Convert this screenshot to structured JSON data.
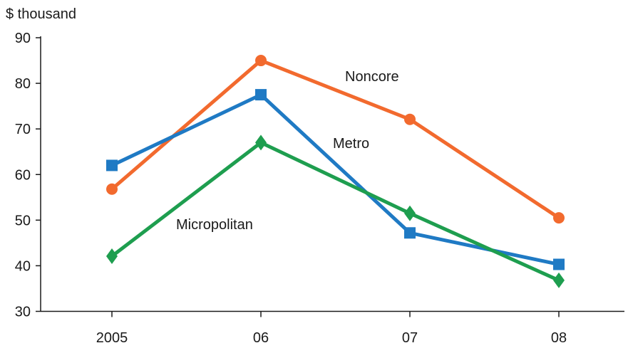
{
  "chart_data": {
    "type": "line",
    "unit_label": "$ thousand",
    "categories": [
      "2005",
      "06",
      "07",
      "08"
    ],
    "ylim": [
      30,
      90
    ],
    "yticks": [
      30,
      40,
      50,
      60,
      70,
      80,
      90
    ],
    "grid": false,
    "legend": "inline labels",
    "series": [
      {
        "name": "Noncore",
        "color": "#f26a2e",
        "marker": "circle",
        "values": [
          56.8,
          85,
          72.1,
          50.5
        ]
      },
      {
        "name": "Metro",
        "color": "#1f7ac4",
        "marker": "square",
        "values": [
          62,
          77.5,
          47.2,
          40.3
        ]
      },
      {
        "name": "Micropolitan",
        "color": "#1e9e4f",
        "marker": "diamond",
        "values": [
          42.1,
          67,
          51.5,
          36.8
        ]
      }
    ]
  }
}
